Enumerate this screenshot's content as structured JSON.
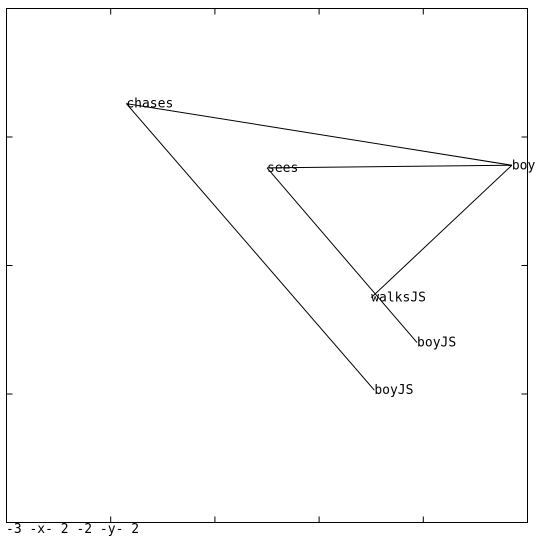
{
  "chart_data": {
    "type": "line",
    "title": "",
    "xlim": [
      -3,
      2
    ],
    "ylim": [
      -2,
      2
    ],
    "axis_caption": "-3 -x- 2  -2 -y- 2",
    "grid": false,
    "points": [
      {
        "label": "chases",
        "x": -1.85,
        "y": 1.26
      },
      {
        "label": "boy",
        "x": 1.85,
        "y": 0.78
      },
      {
        "label": "sees",
        "x": -0.5,
        "y": 0.76
      },
      {
        "label": "walksJS",
        "x": 0.5,
        "y": -0.25
      },
      {
        "label": "boyJS",
        "x": 0.94,
        "y": -0.6
      },
      {
        "label": "boyJS",
        "x": 0.53,
        "y": -0.97
      }
    ],
    "segments": [
      [
        0,
        1
      ],
      [
        0,
        5
      ],
      [
        2,
        1
      ],
      [
        2,
        4
      ],
      [
        3,
        1
      ]
    ]
  },
  "colors": {
    "line": "#000000",
    "background": "#ffffff"
  }
}
